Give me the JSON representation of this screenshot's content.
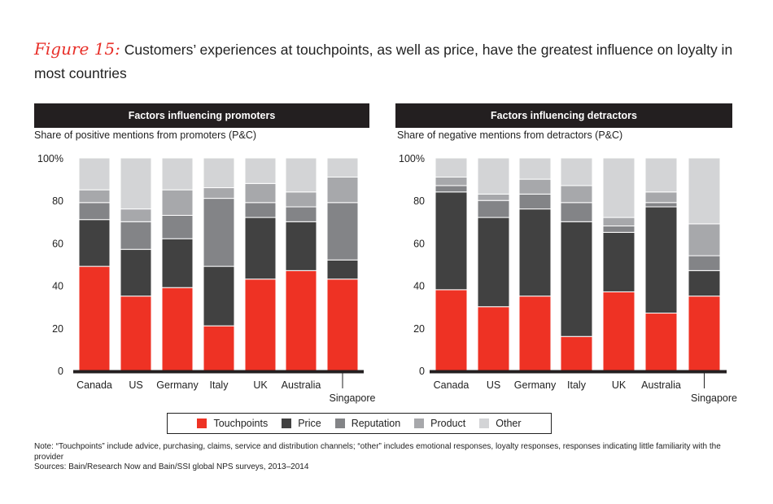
{
  "title": {
    "figure_label": "Figure 15:",
    "text": "Customers’ experiences at touchpoints, as well as price, have the greatest influence on loyalty in most countries"
  },
  "legend": [
    {
      "label": "Touchpoints",
      "color": "#ee3224"
    },
    {
      "label": "Price",
      "color": "#414141"
    },
    {
      "label": "Reputation",
      "color": "#838487"
    },
    {
      "label": "Product",
      "color": "#a7a8ab"
    },
    {
      "label": "Other",
      "color": "#d3d4d6"
    }
  ],
  "note": "Note: “Touchpoints” include advice, purchasing, claims, service and distribution channels; “other” includes emotional responses, loyalty responses, responses indicating little familiarity with the provider",
  "sources": "Sources: Bain/Research Now and Bain/SSI global NPS surveys, 2013–2014",
  "chart_data": [
    {
      "type": "bar",
      "stacked": true,
      "title": "Factors influencing promoters",
      "subtitle": "Share of positive mentions from promoters (P&C)",
      "categories": [
        "Canada",
        "US",
        "Germany",
        "Italy",
        "UK",
        "Australia",
        "Singapore"
      ],
      "ylim": [
        0,
        100
      ],
      "yticks": [
        "0",
        "20",
        "40",
        "60",
        "80",
        "100%"
      ],
      "series": [
        {
          "name": "Touchpoints",
          "values": [
            49,
            35,
            39,
            21,
            43,
            47,
            43
          ]
        },
        {
          "name": "Price",
          "values": [
            22,
            22,
            23,
            28,
            29,
            23,
            9
          ]
        },
        {
          "name": "Reputation",
          "values": [
            8,
            13,
            11,
            32,
            7,
            7,
            27
          ]
        },
        {
          "name": "Product",
          "values": [
            6,
            6,
            12,
            5,
            9,
            7,
            12
          ]
        },
        {
          "name": "Other",
          "values": [
            15,
            24,
            15,
            14,
            12,
            16,
            9
          ]
        }
      ]
    },
    {
      "type": "bar",
      "stacked": true,
      "title": "Factors influencing detractors",
      "subtitle": "Share of negative mentions from detractors (P&C)",
      "categories": [
        "Canada",
        "US",
        "Germany",
        "Italy",
        "UK",
        "Australia",
        "Singapore"
      ],
      "ylim": [
        0,
        100
      ],
      "yticks": [
        "0",
        "20",
        "40",
        "60",
        "80",
        "100%"
      ],
      "series": [
        {
          "name": "Touchpoints",
          "values": [
            38,
            30,
            35,
            16,
            37,
            27,
            35
          ]
        },
        {
          "name": "Price",
          "values": [
            46,
            42,
            41,
            54,
            28,
            50,
            12
          ]
        },
        {
          "name": "Reputation",
          "values": [
            3,
            8,
            7,
            9,
            3,
            2,
            7
          ]
        },
        {
          "name": "Product",
          "values": [
            4,
            3,
            7,
            8,
            4,
            5,
            15
          ]
        },
        {
          "name": "Other",
          "values": [
            9,
            17,
            10,
            13,
            28,
            16,
            31
          ]
        }
      ]
    }
  ]
}
